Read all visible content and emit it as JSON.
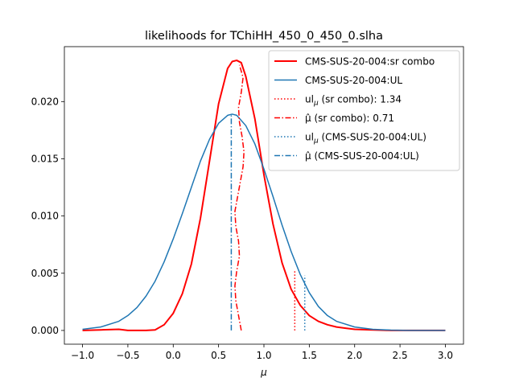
{
  "chart_data": {
    "type": "line",
    "title": "likelihoods for TChiHH_450_0_450_0.slha",
    "xlabel": "μ",
    "ylabel": "",
    "xlim": [
      -1.2,
      3.2
    ],
    "ylim": [
      -0.0012,
      0.0248
    ],
    "xticks": [
      -1.0,
      -0.5,
      0.0,
      0.5,
      1.0,
      1.5,
      2.0,
      2.5,
      3.0
    ],
    "xtick_labels": [
      "−1.0",
      "−0.5",
      "0.0",
      "0.5",
      "1.0",
      "1.5",
      "2.0",
      "2.5",
      "3.0"
    ],
    "yticks": [
      0.0,
      0.005,
      0.01,
      0.015,
      0.02
    ],
    "ytick_labels": [
      "0.000",
      "0.005",
      "0.010",
      "0.015",
      "0.020"
    ],
    "grid": false,
    "legend_position": "top-right",
    "series": [
      {
        "name": "CMS-SUS-20-004:sr combo",
        "color": "#ff0000",
        "style": "solid",
        "width": 2,
        "x": [
          -1.0,
          -0.8,
          -0.6,
          -0.5,
          -0.4,
          -0.3,
          -0.2,
          -0.1,
          0.0,
          0.1,
          0.2,
          0.3,
          0.4,
          0.5,
          0.6,
          0.65,
          0.7,
          0.75,
          0.8,
          0.9,
          1.0,
          1.1,
          1.2,
          1.3,
          1.4,
          1.5,
          1.6,
          1.7,
          1.8,
          1.9,
          2.0,
          2.2,
          2.4,
          2.6,
          2.8,
          3.0
        ],
        "y": [
          0.0,
          5e-05,
          0.0001,
          0.0,
          0.0,
          0.0,
          5e-05,
          0.0005,
          0.0015,
          0.0032,
          0.0058,
          0.0098,
          0.0148,
          0.0198,
          0.0229,
          0.0235,
          0.0236,
          0.0234,
          0.0222,
          0.0185,
          0.0136,
          0.0093,
          0.0059,
          0.0036,
          0.0022,
          0.0013,
          0.0008,
          0.0005,
          0.0003,
          0.0002,
          0.0001,
          5e-05,
          0.0,
          0.0,
          0.0,
          0.0
        ]
      },
      {
        "name": "CMS-SUS-20-004:UL",
        "color": "#1f77b4",
        "style": "solid",
        "width": 1.5,
        "x": [
          -1.0,
          -0.8,
          -0.6,
          -0.5,
          -0.4,
          -0.3,
          -0.2,
          -0.1,
          0.0,
          0.1,
          0.2,
          0.3,
          0.4,
          0.5,
          0.6,
          0.65,
          0.7,
          0.8,
          0.9,
          1.0,
          1.1,
          1.2,
          1.3,
          1.4,
          1.5,
          1.6,
          1.7,
          1.8,
          2.0,
          2.2,
          2.4,
          2.6,
          2.8,
          3.0
        ],
        "y": [
          0.0001,
          0.0003,
          0.0008,
          0.0013,
          0.002,
          0.003,
          0.0043,
          0.006,
          0.008,
          0.0102,
          0.0125,
          0.0148,
          0.0167,
          0.0181,
          0.0188,
          0.0189,
          0.0188,
          0.0179,
          0.0163,
          0.0141,
          0.0117,
          0.0092,
          0.0069,
          0.0049,
          0.0033,
          0.0021,
          0.0013,
          0.0008,
          0.0003,
          0.0001,
          3e-05,
          0.0,
          0.0,
          0.0
        ]
      }
    ],
    "vlines": [
      {
        "name": "ul_μ (sr combo): 1.34",
        "x": 1.34,
        "ymin": 0.0,
        "ymax": 0.0052,
        "color": "#ff0000",
        "style": "dotted"
      },
      {
        "name": "ul_μ (CMS-SUS-20-004:UL)",
        "x": 1.45,
        "ymin": 0.0,
        "ymax": 0.0048,
        "color": "#1f77b4",
        "style": "dotted"
      },
      {
        "name": "μ̂ (CMS-SUS-20-004:UL)",
        "x": 0.64,
        "ymin": 0.0,
        "ymax": 0.0189,
        "color": "#1f77b4",
        "style": "dashdot"
      }
    ],
    "profile_curves": [
      {
        "name": "μ̂ (sr combo): 0.71",
        "color": "#ff0000",
        "style": "dashdot",
        "x": [
          0.75,
          0.72,
          0.69,
          0.68,
          0.7,
          0.73,
          0.72,
          0.69,
          0.68,
          0.71,
          0.74,
          0.77,
          0.78,
          0.76,
          0.73,
          0.72,
          0.75,
          0.77,
          0.73
        ],
        "y": [
          0.0,
          0.0013,
          0.0026,
          0.0039,
          0.0052,
          0.0065,
          0.0078,
          0.0091,
          0.0104,
          0.0117,
          0.013,
          0.0143,
          0.0156,
          0.0169,
          0.0182,
          0.0195,
          0.0208,
          0.0221,
          0.0232
        ]
      }
    ],
    "legend": [
      {
        "label": "CMS-SUS-20-004:sr combo",
        "color": "#ff0000",
        "style": "solid",
        "width": 2
      },
      {
        "label": "CMS-SUS-20-004:UL",
        "color": "#1f77b4",
        "style": "solid",
        "width": 1.5
      },
      {
        "label_main": "ul",
        "label_sub": "μ",
        "label_rest": " (sr combo): 1.34",
        "color": "#ff0000",
        "style": "dotted",
        "width": 1.5
      },
      {
        "label_main": "μ̂",
        "label_sub": "",
        "label_rest": " (sr combo): 0.71",
        "color": "#ff0000",
        "style": "dashdot",
        "width": 1.5
      },
      {
        "label_main": "ul",
        "label_sub": "μ",
        "label_rest": " (CMS-SUS-20-004:UL)",
        "color": "#1f77b4",
        "style": "dotted",
        "width": 1.5
      },
      {
        "label_main": "μ̂",
        "label_sub": "",
        "label_rest": " (CMS-SUS-20-004:UL)",
        "color": "#1f77b4",
        "style": "dashdot",
        "width": 1.5
      }
    ]
  }
}
